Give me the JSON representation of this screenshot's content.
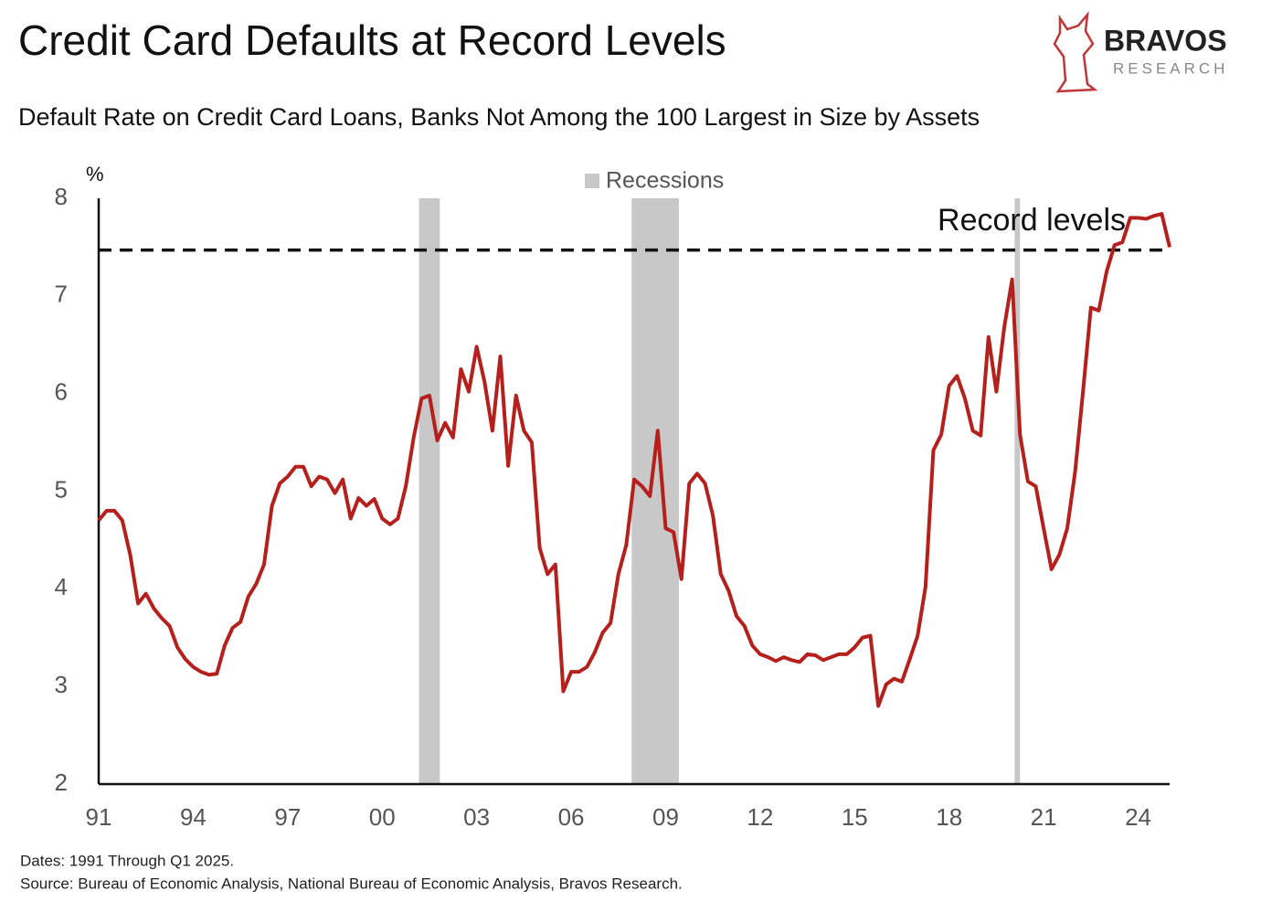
{
  "chart_data": {
    "type": "line",
    "title": "Credit Card Defaults at Record Levels",
    "subtitle": "Default Rate on Credit Card Loans, Banks Not Among the 100 Largest in Size by Assets",
    "y_unit": "%",
    "logo": {
      "name": "BRAVOS",
      "tagline": "RESEARCH"
    },
    "notes": [
      "Dates: 1991 Through Q1 2025.",
      "Source: Bureau of Economic Analysis, National Bureau of Economic Analysis, Bravos Research."
    ],
    "recessions": {
      "name": "Recessions",
      "color": "#c8c8c8",
      "spans": [
        [
          2001.17,
          2001.83
        ],
        [
          2007.92,
          2009.42
        ],
        [
          2020.08,
          2020.25
        ]
      ]
    },
    "reference_line": {
      "value": 7.47,
      "label": "Record levels"
    },
    "xlim": [
      1991,
      2025
    ],
    "xticks": [
      {
        "value": 1991,
        "label": "91"
      },
      {
        "value": 1994,
        "label": "94"
      },
      {
        "value": 1997,
        "label": "97"
      },
      {
        "value": 2000,
        "label": "00"
      },
      {
        "value": 2003,
        "label": "03"
      },
      {
        "value": 2006,
        "label": "06"
      },
      {
        "value": 2009,
        "label": "09"
      },
      {
        "value": 2012,
        "label": "12"
      },
      {
        "value": 2015,
        "label": "15"
      },
      {
        "value": 2018,
        "label": "18"
      },
      {
        "value": 2021,
        "label": "21"
      },
      {
        "value": 2024,
        "label": "24"
      }
    ],
    "ylim": [
      2,
      8
    ],
    "yticks": [
      2,
      3,
      4,
      5,
      6,
      7,
      8
    ],
    "x": [
      1991,
      1991.25,
      1991.5,
      1991.75,
      1992,
      1992.25,
      1992.5,
      1992.75,
      1993,
      1993.25,
      1993.5,
      1993.75,
      1994,
      1994.25,
      1994.5,
      1994.75,
      1995,
      1995.25,
      1995.5,
      1995.75,
      1996,
      1996.25,
      1996.5,
      1996.75,
      1997,
      1997.25,
      1997.5,
      1997.75,
      1998,
      1998.25,
      1998.5,
      1998.75,
      1999,
      1999.25,
      1999.5,
      1999.75,
      2000,
      2000.25,
      2000.5,
      2000.75,
      2001,
      2001.25,
      2001.5,
      2001.75,
      2002,
      2002.25,
      2002.5,
      2002.75,
      2003,
      2003.25,
      2003.5,
      2003.75,
      2004,
      2004.25,
      2004.5,
      2004.75,
      2005,
      2005.25,
      2005.5,
      2005.75,
      2006,
      2006.25,
      2006.5,
      2006.75,
      2007,
      2007.25,
      2007.5,
      2007.75,
      2008,
      2008.25,
      2008.5,
      2008.75,
      2009,
      2009.25,
      2009.5,
      2009.75,
      2010,
      2010.25,
      2010.5,
      2010.75,
      2011,
      2011.25,
      2011.5,
      2011.75,
      2012,
      2012.25,
      2012.5,
      2012.75,
      2013,
      2013.25,
      2013.5,
      2013.75,
      2014,
      2014.25,
      2014.5,
      2014.75,
      2015,
      2015.25,
      2015.5,
      2015.75,
      2016,
      2016.25,
      2016.5,
      2016.75,
      2017,
      2017.25,
      2017.5,
      2017.75,
      2018,
      2018.25,
      2018.5,
      2018.75,
      2019,
      2019.25,
      2019.5,
      2019.75,
      2020,
      2020.25,
      2020.5,
      2020.75,
      2021,
      2021.25,
      2021.5,
      2021.75,
      2022,
      2022.25,
      2022.5,
      2022.75,
      2023,
      2023.25,
      2023.5,
      2023.75,
      2024,
      2024.25,
      2024.5,
      2024.75,
      2025
    ],
    "series": [
      {
        "name": "Default rate",
        "color": "#b5201c",
        "values": [
          4.7,
          4.8,
          4.8,
          4.7,
          4.35,
          3.85,
          3.95,
          3.8,
          3.7,
          3.62,
          3.4,
          3.28,
          3.2,
          3.15,
          3.12,
          3.13,
          3.42,
          3.6,
          3.66,
          3.92,
          4.05,
          4.25,
          4.85,
          5.08,
          5.15,
          5.25,
          5.25,
          5.05,
          5.15,
          5.12,
          4.98,
          5.12,
          4.72,
          4.93,
          4.85,
          4.92,
          4.72,
          4.66,
          4.72,
          5.05,
          5.55,
          5.95,
          5.98,
          5.52,
          5.7,
          5.55,
          6.25,
          6.02,
          6.48,
          6.12,
          5.62,
          6.38,
          5.26,
          5.98,
          5.62,
          5.5,
          4.42,
          4.15,
          4.25,
          2.95,
          3.15,
          3.15,
          3.2,
          3.35,
          3.55,
          3.65,
          4.15,
          4.45,
          5.12,
          5.05,
          4.95,
          5.62,
          4.62,
          4.58,
          4.1,
          5.08,
          5.18,
          5.08,
          4.75,
          4.15,
          3.98,
          3.72,
          3.62,
          3.42,
          3.33,
          3.3,
          3.26,
          3.3,
          3.27,
          3.25,
          3.33,
          3.32,
          3.27,
          3.3,
          3.33,
          3.33,
          3.4,
          3.5,
          3.52,
          2.8,
          3.02,
          3.08,
          3.05,
          3.28,
          3.52,
          4.02,
          5.42,
          5.58,
          6.08,
          6.18,
          5.95,
          5.62,
          5.57,
          6.58,
          6.02,
          6.68,
          7.17,
          5.58,
          5.1,
          5.05,
          4.62,
          4.2,
          4.35,
          4.62,
          5.2,
          6.02,
          6.88,
          6.85,
          7.25,
          7.52,
          7.55,
          7.8,
          7.8,
          7.79,
          7.82,
          7.84,
          7.5
        ]
      }
    ]
  }
}
